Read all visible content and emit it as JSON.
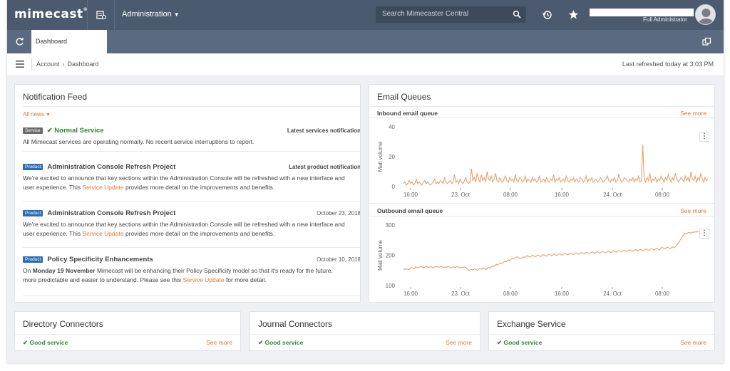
{
  "topbar": {
    "logo": "mimecast",
    "logo_mark": "®",
    "admin_menu": "Administration",
    "search_placeholder": "Search Mimecaster Central",
    "user_role": "Full Administrator",
    "bg_color": "#4b5a6f"
  },
  "tabs": [
    {
      "label": "Dashboard",
      "active": true
    }
  ],
  "breadcrumb": {
    "items": [
      "Account",
      "Dashboard"
    ],
    "refreshed": "Last refreshed today at 3:03 PM"
  },
  "notification_feed": {
    "title": "Notification Feed",
    "filter": "All news",
    "items": [
      {
        "tag": "Service",
        "title": "Normal Service",
        "meta": "Latest services notification",
        "body": "All Mimecast services are operating normally. No recent service interruptions to report."
      },
      {
        "tag": "Product",
        "title": "Administration Console Refresh Project",
        "meta": "Latest product notification",
        "body_pre": "We're excited to announce that key sections within the Administration Console will be refreshed with a new interface and user experience. This ",
        "body_link": "Service Update",
        "body_post": " provides more detail on the improvements and benefits."
      },
      {
        "tag": "Product",
        "title": "Administration Console Refresh Project",
        "meta": "October 23, 2018",
        "body_pre": "We're excited to announce that key sections within the Administration Console will be refreshed with a new interface and user experience. This ",
        "body_link": "Service Update",
        "body_post": " provides more detail on the improvements and benefits."
      },
      {
        "tag": "Product",
        "title": "Policy Specificity Enhancements",
        "meta": "October 10, 2018",
        "body_pre": "On ",
        "body_bold": "Monday 19 November",
        "body_mid": " Mimecast will be enhancing their Policy Specificity model so that it's ready for the future, more predictable and easier to understand. Please see this ",
        "body_link": "Service Update",
        "body_post": " for more detail."
      }
    ]
  },
  "email_queues": {
    "title": "Email Queues",
    "inbound": {
      "label": "Inbound email queue",
      "see_more": "See more"
    },
    "outbound": {
      "label": "Outbound email queue",
      "see_more": "See more"
    }
  },
  "chart_data": [
    {
      "type": "line",
      "title": "Inbound email queue",
      "xlabel": "",
      "ylabel": "Mail volume",
      "ylim": [
        0,
        40
      ],
      "yticks": [
        0,
        20,
        40
      ],
      "xticks": [
        "16:00",
        "23. Oct",
        "08:00",
        "16:00",
        "24. Oct",
        "08:00"
      ],
      "line_color": "#e8a070",
      "grid": false,
      "values": [
        2,
        3,
        1,
        2,
        4,
        2,
        3,
        1,
        2,
        5,
        2,
        3,
        2,
        1,
        3,
        4,
        2,
        3,
        2,
        1,
        2,
        3,
        5,
        2,
        3,
        2,
        4,
        3,
        2,
        6,
        3,
        2,
        3,
        4,
        2,
        3,
        8,
        3,
        4,
        2,
        5,
        3,
        2,
        4,
        6,
        3,
        2,
        3,
        12,
        4,
        6,
        3,
        9,
        5,
        3,
        8,
        4,
        6,
        3,
        10,
        5,
        4,
        7,
        3,
        5,
        9,
        4,
        3,
        6,
        4,
        3,
        5,
        7,
        4,
        3,
        6,
        4,
        5,
        3,
        8,
        4,
        3,
        6,
        5,
        3,
        4,
        7,
        3,
        5,
        4,
        3,
        6,
        4,
        5,
        3,
        4,
        7,
        3,
        4,
        5,
        3,
        6,
        4,
        3,
        5,
        4,
        8,
        3,
        5,
        4,
        6,
        3,
        4,
        5,
        3,
        7,
        4,
        3,
        5,
        4,
        6,
        3,
        5,
        4,
        3,
        6,
        5,
        3,
        4,
        7,
        3,
        5,
        4,
        6,
        3,
        4,
        5,
        3,
        4,
        6,
        5,
        3,
        4,
        5,
        7,
        4,
        3,
        5,
        4,
        6,
        3,
        4,
        8,
        5,
        3,
        4,
        6,
        5,
        4,
        3,
        5,
        4,
        6,
        3,
        5,
        4,
        7,
        3,
        4,
        28,
        5,
        3,
        6,
        4,
        9,
        3,
        5,
        4,
        6,
        3,
        5,
        4,
        7,
        5,
        3,
        6,
        4,
        8,
        5,
        3,
        6,
        4,
        9,
        5,
        3,
        4,
        6,
        5,
        3,
        7,
        4,
        6,
        3,
        10,
        5,
        4,
        7,
        3,
        6,
        4,
        9,
        5,
        3,
        6,
        4,
        5
      ]
    },
    {
      "type": "line",
      "title": "Outbound email queue",
      "xlabel": "",
      "ylabel": "Mail volume",
      "ylim": [
        100,
        300
      ],
      "yticks": [
        100,
        200,
        300
      ],
      "xticks": [
        "16:00",
        "23. Oct",
        "08:00",
        "16:00",
        "24. Oct",
        "08:00"
      ],
      "line_color": "#e8a070",
      "grid": false,
      "values": [
        155,
        153,
        156,
        154,
        152,
        158,
        160,
        157,
        155,
        162,
        160,
        158,
        161,
        163,
        160,
        158,
        162,
        164,
        161,
        159,
        163,
        160,
        158,
        162,
        161,
        163,
        160,
        162,
        164,
        161,
        159,
        162,
        160,
        163,
        161,
        158,
        160,
        162,
        159,
        161,
        163,
        160,
        158,
        161,
        159,
        162,
        160,
        157,
        152,
        150,
        154,
        151,
        153,
        156,
        152,
        150,
        155,
        157,
        154,
        158,
        156,
        153,
        157,
        160,
        158,
        162,
        165,
        163,
        167,
        170,
        168,
        172,
        175,
        173,
        177,
        180,
        178,
        182,
        185,
        183,
        187,
        190,
        188,
        192,
        195,
        193,
        190,
        188,
        192,
        195,
        193,
        197,
        199,
        196,
        194,
        198,
        200,
        197,
        195,
        199,
        201,
        198,
        196,
        200,
        202,
        199,
        197,
        201,
        203,
        200,
        198,
        202,
        204,
        201,
        199,
        203,
        205,
        202,
        200,
        204,
        206,
        203,
        201,
        205,
        207,
        204,
        202,
        206,
        208,
        205,
        203,
        207,
        209,
        206,
        204,
        208,
        210,
        207,
        205,
        209,
        211,
        208,
        206,
        210,
        212,
        209,
        207,
        211,
        213,
        210,
        208,
        212,
        214,
        211,
        209,
        213,
        215,
        212,
        210,
        214,
        216,
        213,
        211,
        215,
        217,
        214,
        212,
        216,
        218,
        215,
        213,
        217,
        219,
        216,
        214,
        218,
        220,
        217,
        215,
        219,
        221,
        218,
        216,
        220,
        222,
        219,
        217,
        221,
        223,
        220,
        218,
        224,
        226,
        223,
        221,
        225,
        227,
        224,
        222,
        226,
        228,
        225,
        230,
        235,
        240,
        248,
        255,
        262,
        268,
        272,
        270,
        274,
        276,
        273,
        277,
        275,
        278,
        276,
        280,
        277
      ]
    }
  ],
  "services": [
    {
      "title": "Directory Connectors",
      "status": "Good service",
      "see_more": "See more"
    },
    {
      "title": "Journal Connectors",
      "status": "Good service",
      "see_more": "See more"
    },
    {
      "title": "Exchange Service",
      "status": "Good service",
      "see_more": "See more"
    }
  ],
  "icons": {
    "check": "✔",
    "kebab": "⋮",
    "chevron": "⌄",
    "breadcrumb_arrow": "›"
  },
  "colors": {
    "accent_orange": "#e07a2e",
    "good_green": "#2f8a2c",
    "product_blue": "#2a6db5",
    "service_gray": "#6b6b6b",
    "nav_dark": "#4b5a6f",
    "nav_mid": "#5a6a80"
  }
}
